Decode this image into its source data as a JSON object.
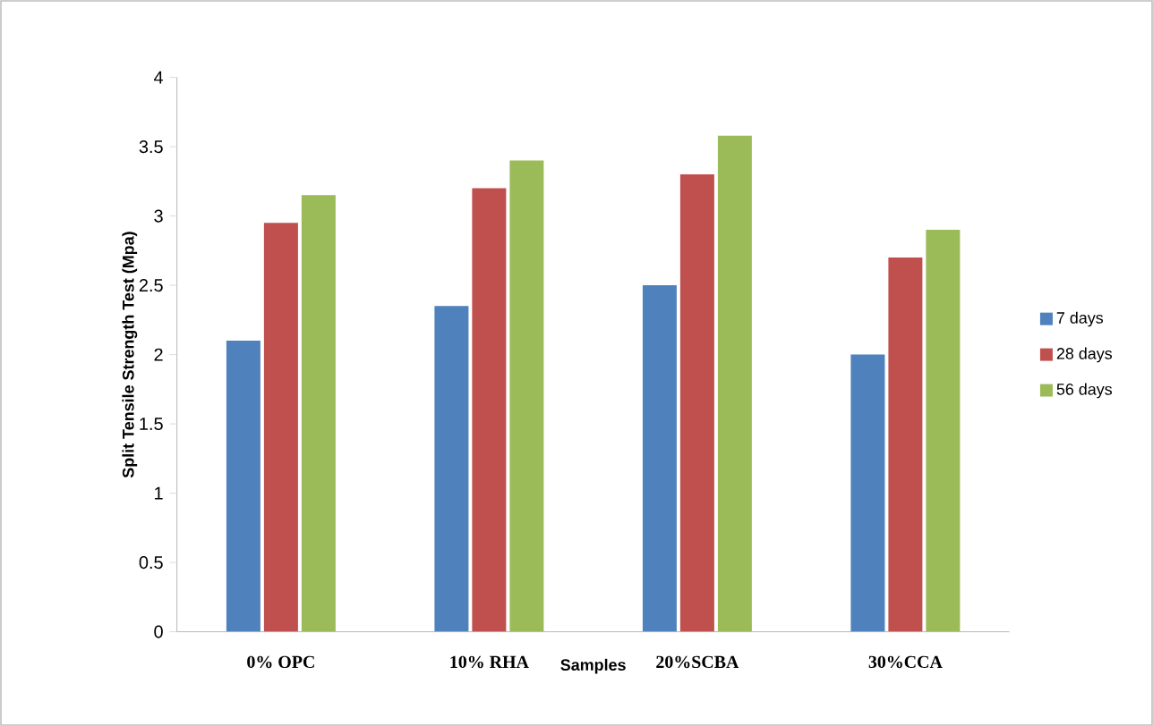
{
  "chart_data": {
    "type": "bar",
    "xlabel": "Samples",
    "ylabel": "Split Tensile Strength Test  (Mpa)",
    "categories": [
      "0% OPC",
      "10% RHA",
      "20%SCBA",
      "30%CCA"
    ],
    "series": [
      {
        "name": "7 days",
        "color": "#4f81bd",
        "values": [
          2.1,
          2.35,
          2.5,
          2.0
        ]
      },
      {
        "name": "28 days",
        "color": "#c0504d",
        "values": [
          2.95,
          3.2,
          3.3,
          2.7
        ]
      },
      {
        "name": "56 days",
        "color": "#9bbb59",
        "values": [
          3.15,
          3.4,
          3.58,
          2.9
        ]
      }
    ],
    "ylim": [
      0,
      4
    ],
    "yticks": [
      0,
      0.5,
      1,
      1.5,
      2,
      2.5,
      3,
      3.5,
      4
    ],
    "legend": "right"
  }
}
